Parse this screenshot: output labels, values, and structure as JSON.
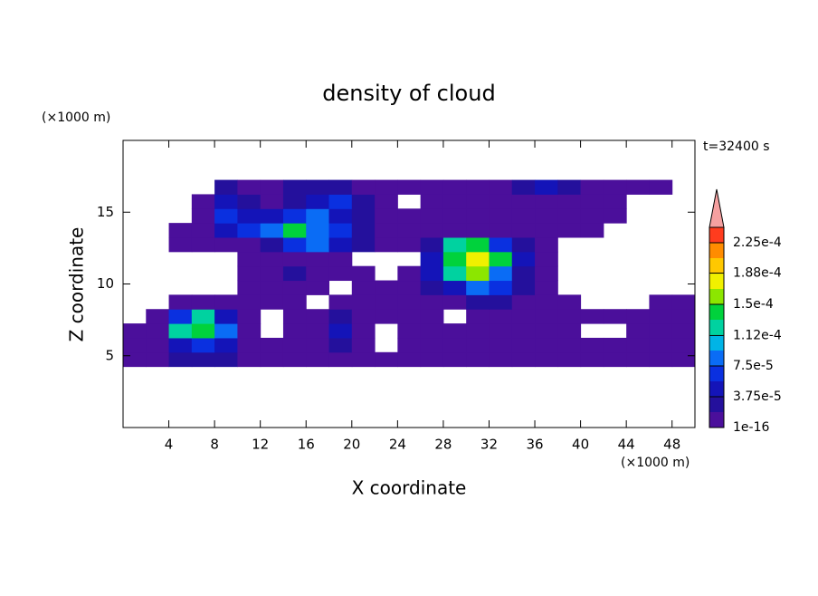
{
  "chart_data": {
    "type": "contour",
    "title": "density of cloud",
    "x_label": "X coordinate",
    "y_label": "Z coordinate",
    "x_unit": "(×1000 m)",
    "y_unit": "(×1000 m)",
    "time_label": "t=32400 s",
    "xlim": [
      0,
      50
    ],
    "ylim": [
      0,
      20
    ],
    "xticks": [
      4,
      8,
      12,
      16,
      20,
      24,
      28,
      32,
      36,
      40,
      44,
      48
    ],
    "yticks": [
      5,
      10,
      15
    ],
    "x": [
      1,
      3,
      5,
      7,
      9,
      11,
      13,
      15,
      17,
      19,
      21,
      23,
      25,
      27,
      29,
      31,
      33,
      35,
      37,
      39,
      41,
      43,
      45,
      47,
      49
    ],
    "z": [
      4.75,
      5.75,
      6.75,
      7.75,
      8.75,
      9.75,
      10.75,
      11.75,
      12.75,
      13.75,
      14.75,
      15.75,
      16.75
    ],
    "values": [
      [
        1e-05,
        1e-05,
        3e-05,
        3e-05,
        3e-05,
        1e-05,
        1e-05,
        1e-05,
        1e-05,
        1e-05,
        1e-05,
        1e-05,
        1e-05,
        1e-05,
        1e-05,
        1e-05,
        1e-05,
        1e-05,
        1e-05,
        1e-05,
        1e-05,
        1e-05,
        1e-05,
        1e-05,
        1e-05
      ],
      [
        1e-05,
        1e-05,
        5e-05,
        7e-05,
        5e-05,
        1e-05,
        1e-05,
        1e-05,
        1e-05,
        3e-05,
        1e-05,
        null,
        1e-05,
        1e-05,
        1e-05,
        1e-05,
        1e-05,
        1e-05,
        1e-05,
        1e-05,
        1e-05,
        1e-05,
        1e-05,
        1e-05,
        1e-05
      ],
      [
        1e-05,
        1e-05,
        0.00012,
        0.000145,
        9e-05,
        1e-05,
        null,
        1e-05,
        1e-05,
        5e-05,
        1e-05,
        null,
        1e-05,
        1e-05,
        1e-05,
        1e-05,
        1e-05,
        1e-05,
        1e-05,
        1e-05,
        null,
        null,
        1e-05,
        1e-05,
        1e-05
      ],
      [
        null,
        1e-05,
        7e-05,
        0.00012,
        5e-05,
        1e-05,
        null,
        1e-05,
        1e-05,
        3e-05,
        1e-05,
        1e-05,
        1e-05,
        1e-05,
        null,
        1e-05,
        1e-05,
        1e-05,
        1e-05,
        1e-05,
        1e-05,
        1e-05,
        1e-05,
        1e-05,
        1e-05
      ],
      [
        null,
        null,
        1e-05,
        1e-05,
        1e-05,
        1e-05,
        1e-05,
        1e-05,
        null,
        1e-05,
        1e-05,
        1e-05,
        1e-05,
        1e-05,
        1e-05,
        3e-05,
        3e-05,
        1e-05,
        1e-05,
        1e-05,
        null,
        null,
        null,
        1e-05,
        1e-05
      ],
      [
        null,
        null,
        null,
        null,
        null,
        1e-05,
        1e-05,
        1e-05,
        1e-05,
        null,
        1e-05,
        1e-05,
        1e-05,
        3e-05,
        5e-05,
        9e-05,
        7e-05,
        3e-05,
        1e-05,
        null,
        null,
        null,
        null,
        null,
        null
      ],
      [
        null,
        null,
        null,
        null,
        null,
        1e-05,
        1e-05,
        3e-05,
        1e-05,
        1e-05,
        1e-05,
        null,
        1e-05,
        5e-05,
        0.00012,
        0.00016,
        9e-05,
        3e-05,
        1e-05,
        null,
        null,
        null,
        null,
        null,
        null
      ],
      [
        null,
        null,
        null,
        null,
        null,
        1e-05,
        1e-05,
        1e-05,
        1e-05,
        1e-05,
        null,
        null,
        null,
        5e-05,
        0.000145,
        0.000175,
        0.000145,
        5e-05,
        1e-05,
        null,
        null,
        null,
        null,
        null,
        null
      ],
      [
        null,
        null,
        1e-05,
        1e-05,
        1e-05,
        1e-05,
        3e-05,
        7e-05,
        9e-05,
        5e-05,
        3e-05,
        1e-05,
        1e-05,
        3e-05,
        0.00012,
        0.000145,
        7e-05,
        3e-05,
        1e-05,
        null,
        null,
        null,
        null,
        null,
        null
      ],
      [
        null,
        null,
        1e-05,
        1e-05,
        5e-05,
        7e-05,
        9e-05,
        0.000145,
        9e-05,
        7e-05,
        3e-05,
        1e-05,
        1e-05,
        1e-05,
        1e-05,
        1e-05,
        1e-05,
        1e-05,
        1e-05,
        1e-05,
        1e-05,
        null,
        null,
        null,
        null
      ],
      [
        null,
        null,
        null,
        1e-05,
        7e-05,
        5e-05,
        5e-05,
        7e-05,
        9e-05,
        5e-05,
        3e-05,
        1e-05,
        1e-05,
        1e-05,
        1e-05,
        1e-05,
        1e-05,
        1e-05,
        1e-05,
        1e-05,
        1e-05,
        1e-05,
        null,
        null,
        null
      ],
      [
        null,
        null,
        null,
        1e-05,
        5e-05,
        3e-05,
        1e-05,
        3e-05,
        5e-05,
        7e-05,
        3e-05,
        1e-05,
        null,
        1e-05,
        1e-05,
        1e-05,
        1e-05,
        1e-05,
        1e-05,
        1e-05,
        1e-05,
        1e-05,
        null,
        null,
        null
      ],
      [
        null,
        null,
        null,
        null,
        3e-05,
        1e-05,
        1e-05,
        3e-05,
        3e-05,
        3e-05,
        1e-05,
        1e-05,
        1e-05,
        1e-05,
        1e-05,
        1e-05,
        1e-05,
        3e-05,
        5e-05,
        3e-05,
        1e-05,
        1e-05,
        1e-05,
        1e-05,
        null
      ]
    ],
    "clim": [
      1e-16,
      0.00024375
    ],
    "colors": [
      "#4b0f9b",
      "#24109c",
      "#1414b8",
      "#0a30e0",
      "#0a6cf5",
      "#00b4e6",
      "#00d2a0",
      "#00d23c",
      "#8ce600",
      "#f0f000",
      "#ffc800",
      "#ff8c00",
      "#ff3c1e"
    ],
    "over_color": "#f5a0a0",
    "colorbar_ticks": [
      {
        "value": 1e-16,
        "label": "1e-16"
      },
      {
        "value": 3.75e-05,
        "label": "3.75e-5"
      },
      {
        "value": 7.5e-05,
        "label": "7.5e-5"
      },
      {
        "value": 0.000112,
        "label": "1.12e-4"
      },
      {
        "value": 0.00015,
        "label": "1.5e-4"
      },
      {
        "value": 0.000188,
        "label": "1.88e-4"
      },
      {
        "value": 0.000225,
        "label": "2.25e-4"
      }
    ]
  }
}
